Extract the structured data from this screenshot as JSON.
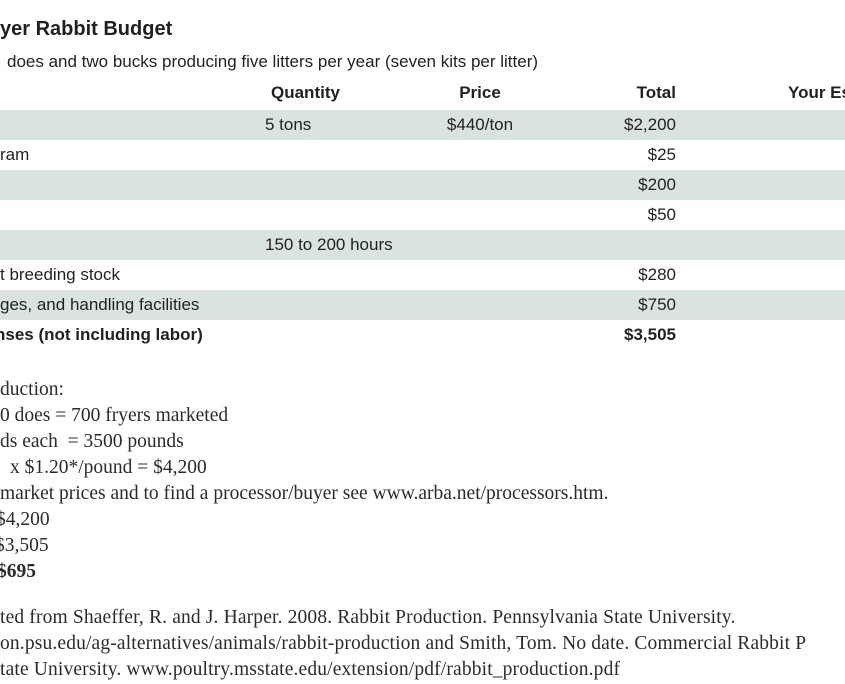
{
  "title": "yer Rabbit Budget",
  "subtitle": "does and two bucks producing five litters per year (seven kits per litter)",
  "table": {
    "headers": {
      "quantity": "Quantity",
      "price": "Price",
      "total": "Total",
      "your_estimate": "Your Es"
    },
    "rows": [
      {
        "label": "",
        "quantity": "5 tons",
        "price": "$440/ton",
        "total": "$2,200",
        "shaded": true
      },
      {
        "label": "ram",
        "quantity": "",
        "price": "",
        "total": "$25",
        "shaded": false
      },
      {
        "label": "",
        "quantity": "",
        "price": "",
        "total": "$200",
        "shaded": true
      },
      {
        "label": "",
        "quantity": "",
        "price": "",
        "total": "$50",
        "shaded": false
      },
      {
        "label": "",
        "quantity": "150 to 200 hours",
        "price": "",
        "total": "",
        "shaded": true
      },
      {
        "label": "t breeding stock",
        "quantity": "",
        "price": "",
        "total": "$280",
        "shaded": false
      },
      {
        "label": "ges, and handling facilities",
        "quantity": "",
        "price": "",
        "total": "$750",
        "shaded": true
      },
      {
        "label": "nses (not including labor)",
        "quantity": "",
        "price": "",
        "total": "$3,505",
        "shaded": false,
        "bold": true
      }
    ]
  },
  "notes": {
    "lines": [
      "duction:",
      "0 does = 700 fryers marketed",
      "ds each  = 3500 pounds",
      "x $1.20*/pound = $4,200",
      "market prices and to find a processor/buyer see www.arba.net/processors.htm.",
      "$4,200",
      "$3,505",
      "$695"
    ]
  },
  "citation": {
    "lines": [
      "ted from Shaeffer, R. and J. Harper. 2008. Rabbit Production. Pennsylvania State University.",
      "on.psu.edu/ag-alternatives/animals/rabbit-production and Smith, Tom. No date. Commercial Rabbit P",
      "tate University. www.poultry.msstate.edu/extension/pdf/rabbit_production.pdf"
    ]
  },
  "colors": {
    "row_shaded": "#d8e4dd",
    "text": "#231f20"
  }
}
